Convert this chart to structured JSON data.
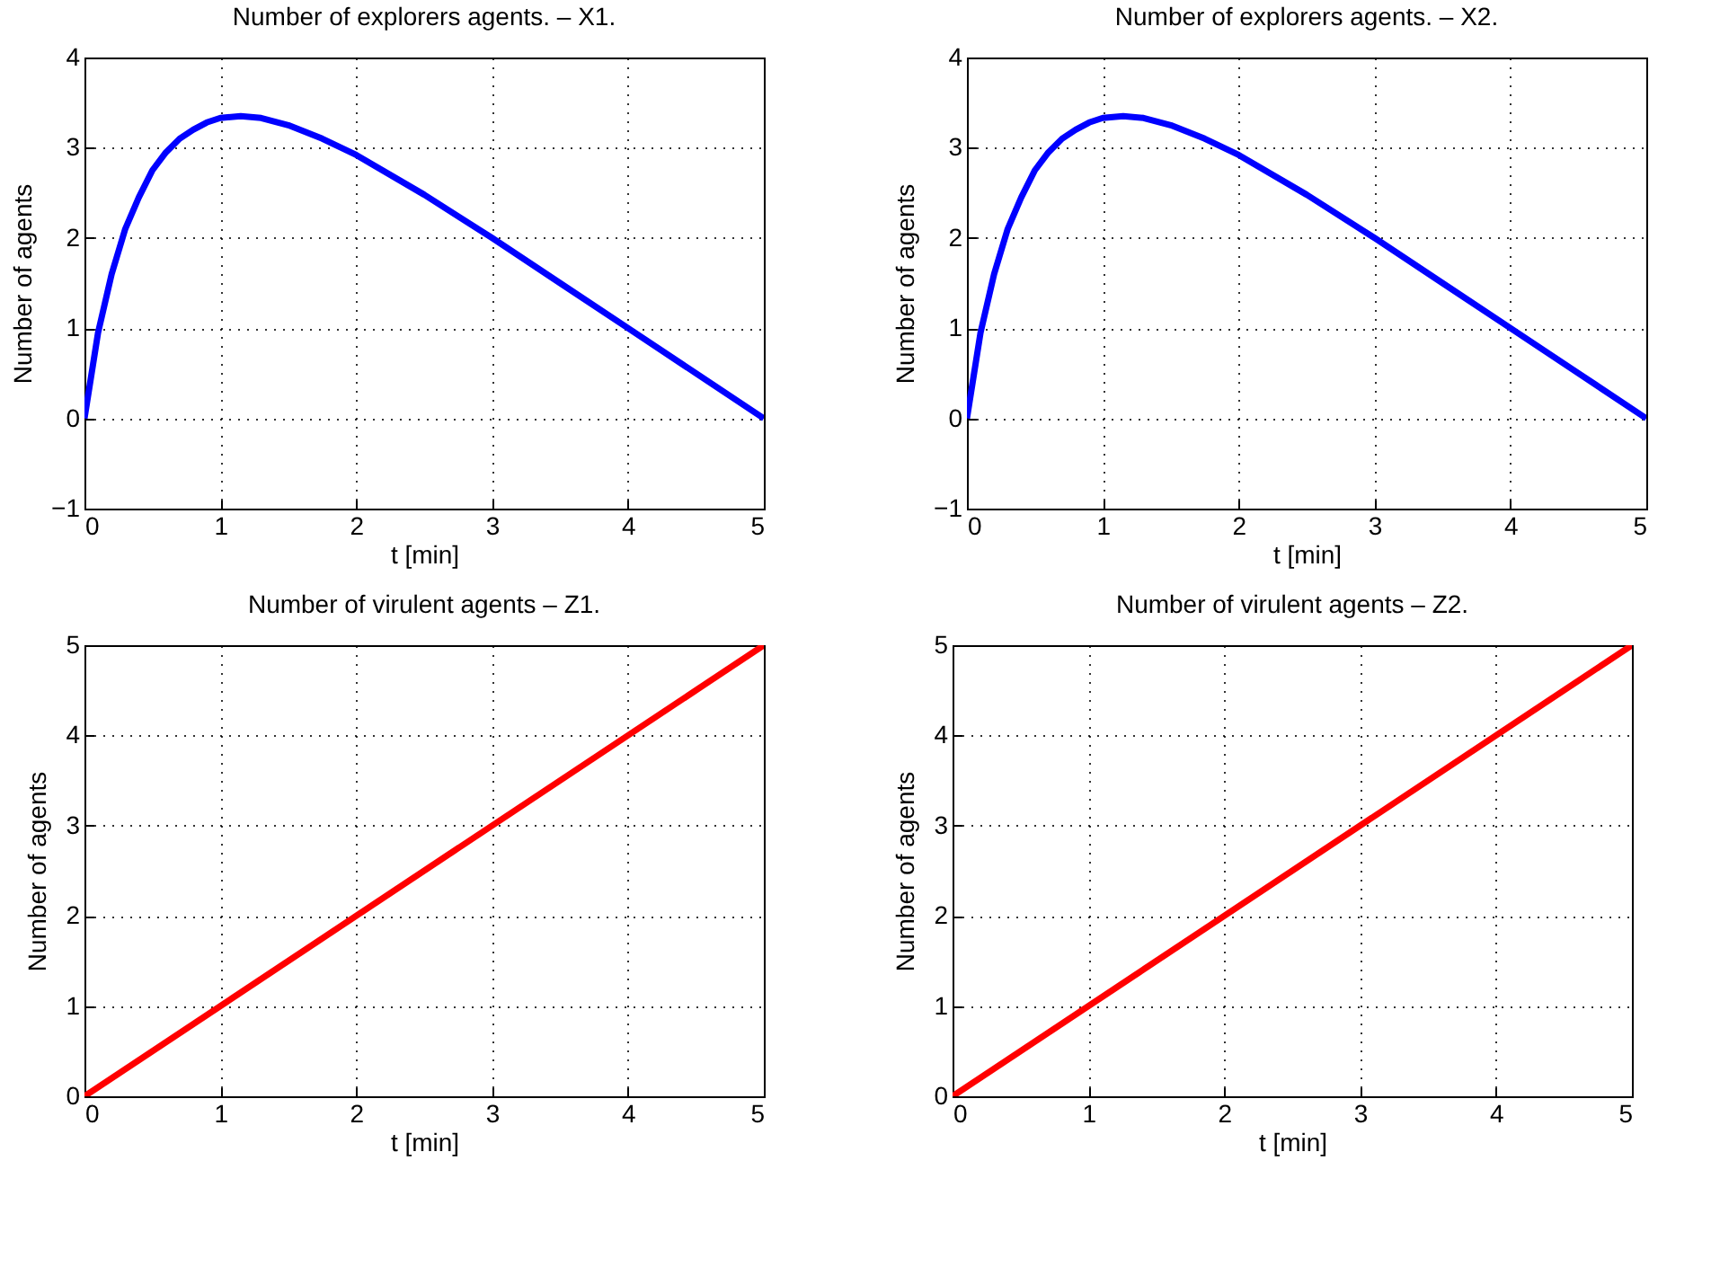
{
  "chart_data": [
    {
      "type": "line",
      "title": "Number of explorers agents. – X1.",
      "xlabel": "t [min]",
      "ylabel": "Number of agents",
      "x": [
        0,
        0.1,
        0.2,
        0.3,
        0.4,
        0.5,
        0.6,
        0.7,
        0.8,
        0.9,
        1.0,
        1.15,
        1.3,
        1.5,
        1.75,
        2.0,
        2.5,
        3.0,
        3.5,
        4.0,
        4.5,
        5.0
      ],
      "series": [
        {
          "color": "#0000ff",
          "values": [
            0,
            0.95,
            1.6,
            2.1,
            2.45,
            2.75,
            2.95,
            3.1,
            3.2,
            3.28,
            3.33,
            3.35,
            3.33,
            3.25,
            3.1,
            2.92,
            2.48,
            2.0,
            1.5,
            1.0,
            0.5,
            0
          ]
        }
      ],
      "xlim": [
        0,
        5
      ],
      "ylim": [
        -1,
        4
      ],
      "xticks": [
        0,
        1,
        2,
        3,
        4,
        5
      ],
      "yticks": [
        {
          "value": -1,
          "label": "−1"
        },
        0,
        1,
        2,
        3,
        4
      ],
      "grid": true
    },
    {
      "type": "line",
      "title": "Number of explorers agents. – X2.",
      "xlabel": "t [min]",
      "ylabel": "Number of agents",
      "x": [
        0,
        0.1,
        0.2,
        0.3,
        0.4,
        0.5,
        0.6,
        0.7,
        0.8,
        0.9,
        1.0,
        1.15,
        1.3,
        1.5,
        1.75,
        2.0,
        2.5,
        3.0,
        3.5,
        4.0,
        4.5,
        5.0
      ],
      "series": [
        {
          "color": "#0000ff",
          "values": [
            0,
            0.95,
            1.6,
            2.1,
            2.45,
            2.75,
            2.95,
            3.1,
            3.2,
            3.28,
            3.33,
            3.35,
            3.33,
            3.25,
            3.1,
            2.92,
            2.48,
            2.0,
            1.5,
            1.0,
            0.5,
            0
          ]
        }
      ],
      "xlim": [
        0,
        5
      ],
      "ylim": [
        -1,
        4
      ],
      "xticks": [
        0,
        1,
        2,
        3,
        4,
        5
      ],
      "yticks": [
        {
          "value": -1,
          "label": "−1"
        },
        0,
        1,
        2,
        3,
        4
      ],
      "grid": true
    },
    {
      "type": "line",
      "title": "Number of virulent agents – Z1.",
      "xlabel": "t [min]",
      "ylabel": "Number of agents",
      "x": [
        0,
        5
      ],
      "series": [
        {
          "color": "#ff0000",
          "values": [
            0,
            5
          ]
        }
      ],
      "xlim": [
        0,
        5
      ],
      "ylim": [
        0,
        5
      ],
      "xticks": [
        0,
        1,
        2,
        3,
        4,
        5
      ],
      "yticks": [
        0,
        1,
        2,
        3,
        4,
        5
      ],
      "grid": true
    },
    {
      "type": "line",
      "title": "Number of virulent agents – Z2.",
      "xlabel": "t [min]",
      "ylabel": "Number of agents",
      "x": [
        0,
        5
      ],
      "series": [
        {
          "color": "#ff0000",
          "values": [
            0,
            5
          ]
        }
      ],
      "xlim": [
        0,
        5
      ],
      "ylim": [
        0,
        5
      ],
      "xticks": [
        0,
        1,
        2,
        3,
        4,
        5
      ],
      "yticks": [
        0,
        1,
        2,
        3,
        4,
        5
      ],
      "grid": true
    }
  ]
}
